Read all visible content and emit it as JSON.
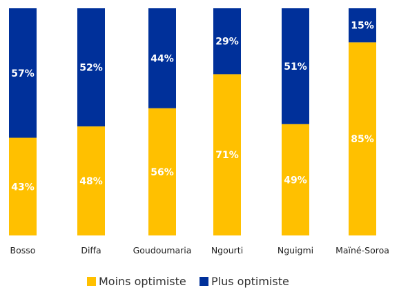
{
  "chart_data": {
    "type": "bar",
    "stacked": true,
    "percent_stacked": true,
    "categories": [
      "Bosso",
      "Diffa",
      "Goudoumaria",
      "Ngourti",
      "Nguigmi",
      "Maïné-Soroa"
    ],
    "series": [
      {
        "name": "Moins optimiste",
        "values": [
          43,
          48,
          56,
          71,
          49,
          85
        ],
        "labels": [
          "43%",
          "48%",
          "56%",
          "71%",
          "49%",
          "85%"
        ],
        "color": "#FFC000",
        "label_color": "#FFFFFF"
      },
      {
        "name": "Plus optimiste",
        "values": [
          57,
          52,
          44,
          29,
          51,
          15
        ],
        "labels": [
          "57%",
          "52%",
          "44%",
          "29%",
          "51%",
          "15%"
        ],
        "color": "#00309A",
        "label_color": "#FFFFFF"
      }
    ],
    "ylim": [
      0,
      100
    ],
    "grid": false,
    "legend": "bottom"
  }
}
